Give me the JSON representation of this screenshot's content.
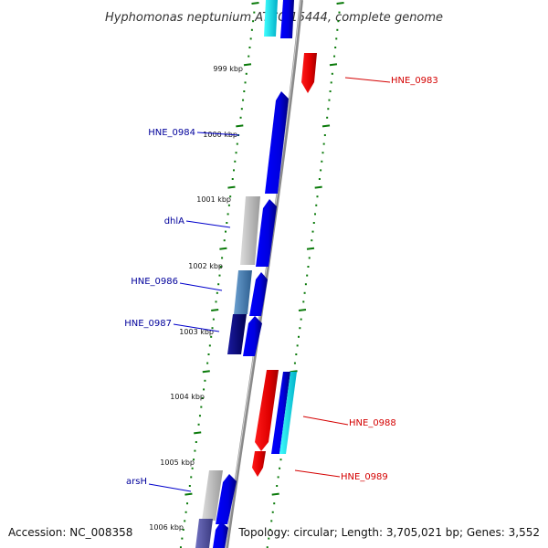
{
  "title": "Hyphomonas neptunium ATCC 15444, complete genome",
  "footer": {
    "accession": "Accession: NC_008358",
    "topology": "Topology: circular; Length: 3,705,021 bp; Genes: 3,552"
  },
  "colors": {
    "reverse_strand_label": "#00009b",
    "forward_strand_label": "#d40000",
    "backbone": "#8a8a8a",
    "tick": "#0a7a0a"
  },
  "kbp_labels": [
    "999 kbp",
    "1000 kbp",
    "1001 kbp",
    "1002 kbp",
    "1003 kbp",
    "1004 kbp",
    "1005 kbp",
    "1006 kbp"
  ],
  "gene_labels": {
    "left": [
      "HNE_0984",
      "dhlA",
      "HNE_0986",
      "HNE_0987",
      "arsH"
    ],
    "right": [
      "HNE_0983",
      "HNE_0988",
      "HNE_0989"
    ]
  }
}
